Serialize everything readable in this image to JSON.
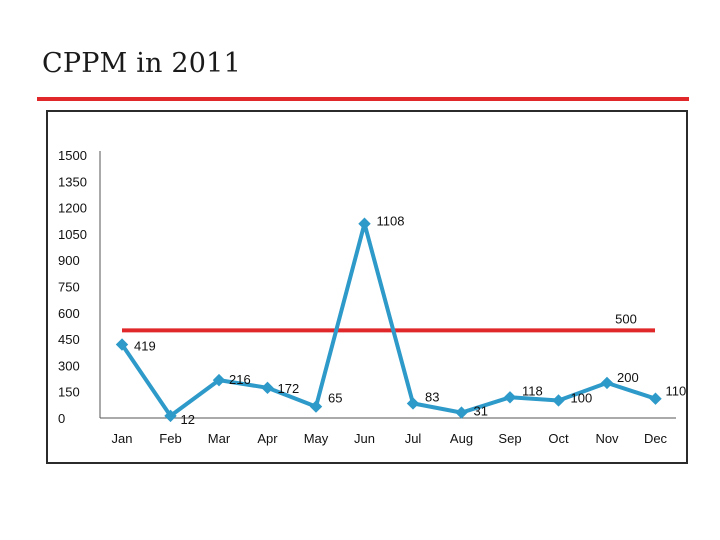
{
  "slide": {
    "title": "CPPM in 2011"
  },
  "colors": {
    "series": "#2e9ac9",
    "target": "#e0282a",
    "rule": "#e0282a",
    "axis": "#555555"
  },
  "chart_data": {
    "type": "line",
    "title": "",
    "xlabel": "",
    "ylabel": "",
    "categories": [
      "Jan",
      "Feb",
      "Mar",
      "Apr",
      "May",
      "Jun",
      "Jul",
      "Aug",
      "Sep",
      "Oct",
      "Nov",
      "Dec"
    ],
    "series": [
      {
        "values": [
          419,
          12,
          216,
          172,
          65,
          1108,
          83,
          31,
          118,
          100,
          200,
          110
        ]
      }
    ],
    "reference_line": {
      "value": 500,
      "label": "500"
    },
    "ylim": [
      0,
      1500
    ],
    "yticks": [
      0,
      150,
      300,
      450,
      600,
      750,
      900,
      1050,
      1200,
      1350,
      1500
    ],
    "ytick_labels": [
      "0",
      "150",
      "300",
      "450",
      "600",
      "750",
      "900",
      "1050",
      "1200",
      "1350",
      "1500"
    ],
    "grid": false,
    "legend": "none"
  }
}
